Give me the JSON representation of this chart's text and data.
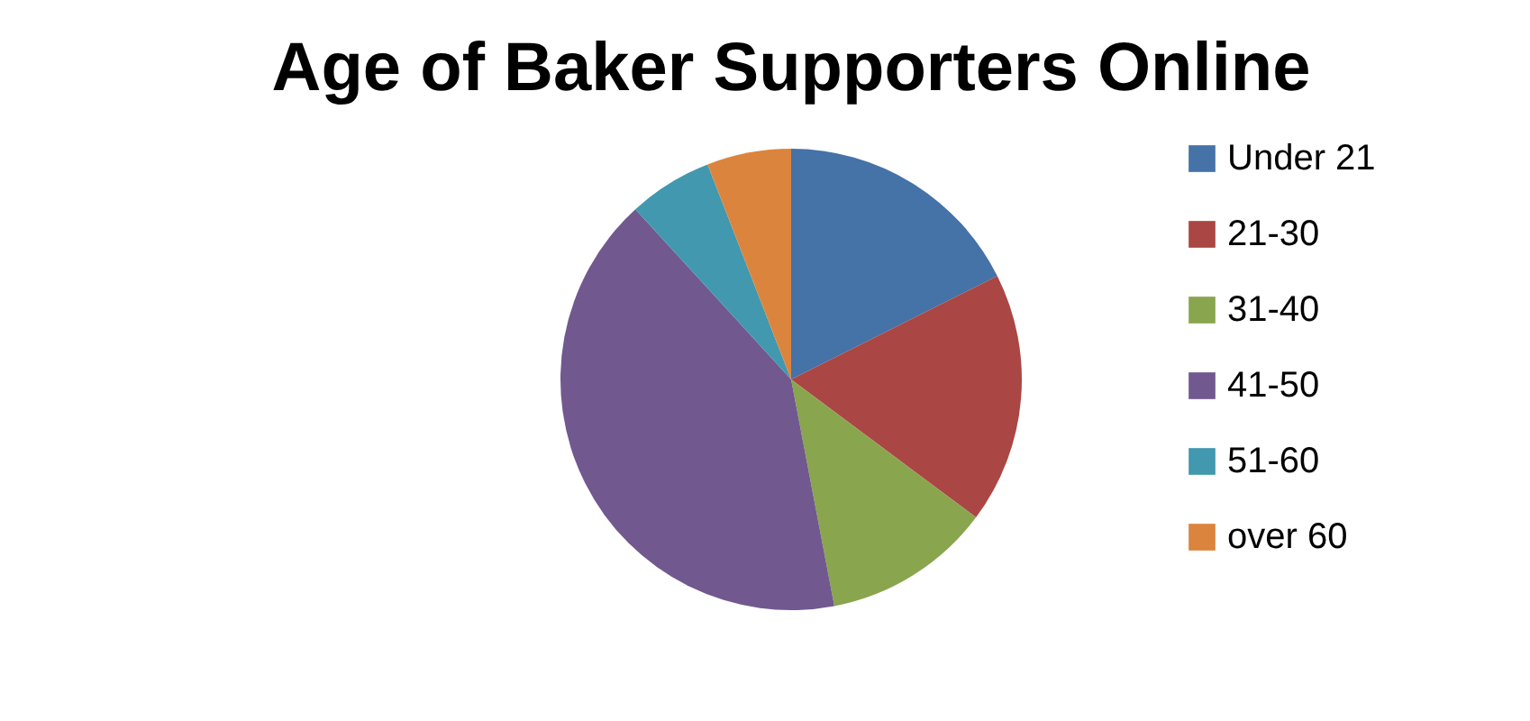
{
  "chart_data": {
    "type": "pie",
    "title": "Age of Baker Supporters Online",
    "categories": [
      "Under 21",
      "21-30",
      "31-40",
      "41-50",
      "51-60",
      "over 60"
    ],
    "values": [
      17.6,
      17.6,
      11.8,
      41.2,
      5.9,
      5.9
    ],
    "colors": [
      "#4572a7",
      "#aa4643",
      "#89a54e",
      "#71588f",
      "#4198af",
      "#db843d"
    ],
    "legend": "right"
  }
}
